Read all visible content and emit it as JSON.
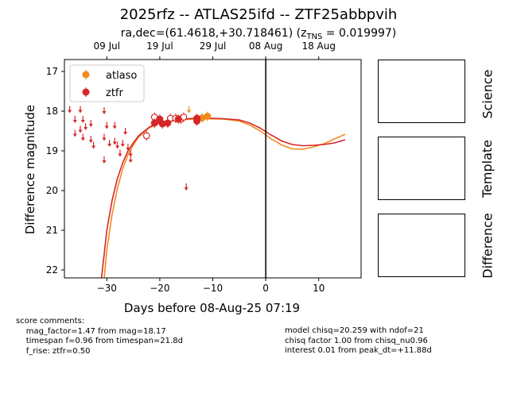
{
  "header": {
    "title": "2025rfz -- ATLAS25ifd -- ZTF25abbpvih",
    "subtitle_main": "ra,dec=(61.4618,+30.718461) (z",
    "subtitle_sub": "TNS",
    "subtitle_end": " = 0.019997)"
  },
  "chart_data": {
    "type": "scatter",
    "xlabel": "Days before 08-Aug-25 07:19",
    "ylabel": "Difference magnitude",
    "xlim": [
      -38,
      18
    ],
    "ylim": [
      22.2,
      16.7
    ],
    "y_inverted": true,
    "xticks": [
      -30,
      -20,
      -10,
      0,
      10
    ],
    "yticks": [
      17,
      18,
      19,
      20,
      21,
      22
    ],
    "top_axis_ticks": [
      {
        "x": -30,
        "label": "09 Jul"
      },
      {
        "x": -20,
        "label": "19 Jul"
      },
      {
        "x": -10,
        "label": "29 Jul"
      },
      {
        "x": 0,
        "label": "08 Aug"
      },
      {
        "x": 10,
        "label": "18 Aug"
      }
    ],
    "vertical_line_x": 0,
    "grid": false,
    "legend_position": "top-left",
    "series": [
      {
        "name": "atlaso",
        "color": "#f28a1e",
        "detections": [
          [
            -12,
            18.17
          ],
          [
            -11,
            18.13
          ]
        ],
        "upper_limits": [
          [
            -14.5,
            17.95
          ]
        ],
        "model": [
          [
            -30.5,
            22.2
          ],
          [
            -30,
            21.5
          ],
          [
            -29,
            20.6
          ],
          [
            -28,
            19.95
          ],
          [
            -27,
            19.45
          ],
          [
            -26,
            19.1
          ],
          [
            -25,
            18.85
          ],
          [
            -24,
            18.65
          ],
          [
            -22,
            18.42
          ],
          [
            -20,
            18.3
          ],
          [
            -16,
            18.22
          ],
          [
            -12,
            18.19
          ],
          [
            -8,
            18.2
          ],
          [
            -5,
            18.25
          ],
          [
            -3,
            18.35
          ],
          [
            -1,
            18.5
          ],
          [
            1,
            18.7
          ],
          [
            3,
            18.85
          ],
          [
            5,
            18.95
          ],
          [
            7,
            18.96
          ],
          [
            9,
            18.9
          ],
          [
            11,
            18.82
          ],
          [
            13,
            18.7
          ],
          [
            15,
            18.58
          ]
        ]
      },
      {
        "name": "ztfr",
        "color": "#d62728",
        "detections": [
          [
            -21,
            18.3
          ],
          [
            -20,
            18.2
          ],
          [
            -19.5,
            18.32
          ],
          [
            -18.5,
            18.3
          ],
          [
            -16.5,
            18.2
          ],
          [
            -13,
            18.25
          ],
          [
            -13,
            18.18
          ]
        ],
        "open_detections": [
          [
            -22.5,
            18.62
          ],
          [
            -21,
            18.15
          ],
          [
            -18,
            18.18
          ],
          [
            -17,
            18.18
          ],
          [
            -16,
            18.2
          ],
          [
            -15.5,
            18.15
          ]
        ],
        "upper_limits": [
          [
            -37,
            17.95
          ],
          [
            -36,
            18.2
          ],
          [
            -36,
            18.55
          ],
          [
            -35,
            17.95
          ],
          [
            -35,
            18.45
          ],
          [
            -34.5,
            18.2
          ],
          [
            -34.5,
            18.65
          ],
          [
            -34,
            18.38
          ],
          [
            -33,
            18.3
          ],
          [
            -33,
            18.7
          ],
          [
            -32.5,
            18.85
          ],
          [
            -30.5,
            17.98
          ],
          [
            -30.5,
            18.65
          ],
          [
            -30.5,
            19.22
          ],
          [
            -30,
            18.35
          ],
          [
            -29.5,
            18.8
          ],
          [
            -28.5,
            18.35
          ],
          [
            -28.5,
            18.75
          ],
          [
            -28,
            18.85
          ],
          [
            -27.5,
            19.05
          ],
          [
            -27,
            18.8
          ],
          [
            -26.5,
            18.5
          ],
          [
            -26,
            18.9
          ],
          [
            -25.5,
            19.05
          ],
          [
            -25.5,
            19.2
          ],
          [
            -15,
            19.9
          ]
        ],
        "model": [
          [
            -31,
            22.2
          ],
          [
            -30.5,
            21.6
          ],
          [
            -30,
            21.0
          ],
          [
            -29,
            20.25
          ],
          [
            -28,
            19.7
          ],
          [
            -27,
            19.3
          ],
          [
            -26,
            19.0
          ],
          [
            -25,
            18.8
          ],
          [
            -24,
            18.62
          ],
          [
            -22,
            18.4
          ],
          [
            -20,
            18.28
          ],
          [
            -16,
            18.2
          ],
          [
            -12,
            18.17
          ],
          [
            -8,
            18.19
          ],
          [
            -5,
            18.22
          ],
          [
            -3,
            18.3
          ],
          [
            -1,
            18.43
          ],
          [
            1,
            18.6
          ],
          [
            3,
            18.75
          ],
          [
            5,
            18.84
          ],
          [
            7,
            18.87
          ],
          [
            9,
            18.86
          ],
          [
            11,
            18.84
          ],
          [
            13,
            18.8
          ],
          [
            15,
            18.72
          ]
        ]
      }
    ]
  },
  "panels": {
    "science_label": "Science",
    "template_label": "Template",
    "difference_label": "Difference"
  },
  "comments": {
    "left": "score comments:\n    mag_factor=1.47 from mag=18.17\n    timespan f=0.96 from timespan=21.8d\n    f_rise: ztfr=0.50",
    "right": "model chisq=20.259 with ndof=21\nchisq factor 1.00 from chisq_nu0.96\ninterest 0.01 from peak_dt=+11.88d"
  }
}
